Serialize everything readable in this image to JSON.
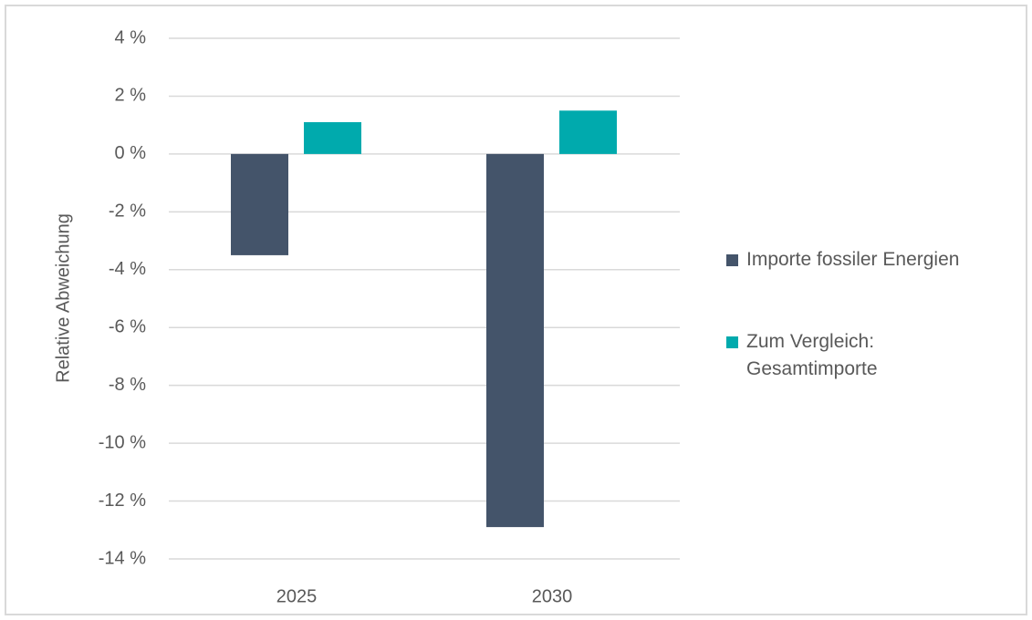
{
  "chart_data": {
    "type": "bar",
    "y_label": "Relative Abweichung",
    "categories": [
      "2025",
      "2030"
    ],
    "series": [
      {
        "name": "Importe fossiler Energien",
        "color": "#44546a",
        "values": [
          -3.5,
          -12.9
        ]
      },
      {
        "name": "Zum Vergleich: Gesamtimporte",
        "color": "#00aaad",
        "values": [
          1.1,
          1.5
        ]
      }
    ],
    "ylim": [
      -14,
      4
    ],
    "yticks": [
      {
        "value": 4,
        "label": "4 %"
      },
      {
        "value": 2,
        "label": "2 %"
      },
      {
        "value": 0,
        "label": "0 %"
      },
      {
        "value": -2,
        "label": "-2 %"
      },
      {
        "value": -4,
        "label": "-4 %"
      },
      {
        "value": -6,
        "label": "-6 %"
      },
      {
        "value": -8,
        "label": "-8 %"
      },
      {
        "value": -10,
        "label": "-10 %"
      },
      {
        "value": -12,
        "label": "-12 %"
      },
      {
        "value": -14,
        "label": "-14 %"
      }
    ],
    "grid": true,
    "legend": "right"
  }
}
